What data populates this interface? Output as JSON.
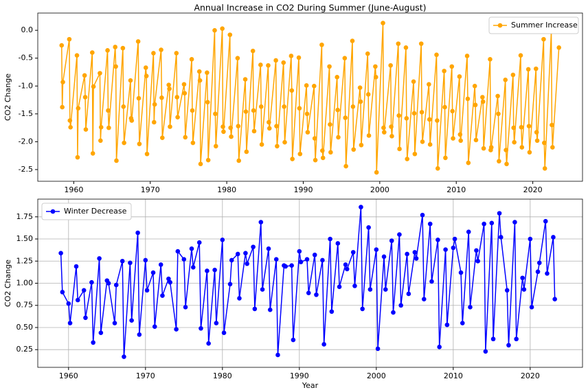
{
  "chart_data": [
    {
      "type": "line",
      "title": "Annual Increase in CO2 During Summer (June-August)",
      "ylabel": "CO2 Change",
      "xlim": [
        1955.3,
        2026.5
      ],
      "ylim": [
        -2.71,
        0.31
      ],
      "grid": false,
      "legend": "upper right",
      "xticks": [
        1960,
        1970,
        1980,
        1990,
        2000,
        2010,
        2020
      ],
      "yticks": [
        {
          "value": 0,
          "label": "0.0"
        },
        -0.5,
        {
          "value": -1,
          "label": "-1.0"
        },
        -1.5,
        {
          "value": -2,
          "label": "-2.0"
        },
        -2.5
      ],
      "x": [
        1958.42,
        1958.5,
        1958.58,
        1959.42,
        1959.5,
        1959.58,
        1960.42,
        1960.5,
        1960.58,
        1961.42,
        1961.5,
        1961.58,
        1962.42,
        1962.5,
        1962.58,
        1963.42,
        1963.5,
        1963.58,
        1964.42,
        1964.5,
        1964.58,
        1965.42,
        1965.5,
        1965.58,
        1966.42,
        1966.5,
        1966.58,
        1967.42,
        1967.5,
        1967.58,
        1968.42,
        1968.5,
        1968.58,
        1969.42,
        1969.5,
        1969.58,
        1970.42,
        1970.5,
        1970.58,
        1971.42,
        1971.5,
        1971.58,
        1972.42,
        1972.5,
        1972.58,
        1973.42,
        1973.5,
        1973.58,
        1974.42,
        1974.5,
        1974.58,
        1975.42,
        1975.5,
        1975.58,
        1976.42,
        1976.5,
        1976.58,
        1977.42,
        1977.5,
        1977.58,
        1978.42,
        1978.5,
        1978.58,
        1979.42,
        1979.5,
        1979.58,
        1980.42,
        1980.5,
        1980.58,
        1981.42,
        1981.5,
        1981.58,
        1982.42,
        1982.5,
        1982.58,
        1983.42,
        1983.5,
        1983.58,
        1984.42,
        1984.5,
        1984.58,
        1985.42,
        1985.5,
        1985.58,
        1986.42,
        1986.5,
        1986.58,
        1987.42,
        1987.5,
        1987.58,
        1988.42,
        1988.5,
        1988.58,
        1989.42,
        1989.5,
        1989.58,
        1990.42,
        1990.5,
        1990.58,
        1991.42,
        1991.5,
        1991.58,
        1992.42,
        1992.5,
        1992.58,
        1993.42,
        1993.5,
        1993.58,
        1994.42,
        1994.5,
        1994.58,
        1995.42,
        1995.5,
        1995.58,
        1996.42,
        1996.5,
        1996.58,
        1997.42,
        1997.5,
        1997.58,
        1998.42,
        1998.5,
        1998.58,
        1999.42,
        1999.5,
        1999.58,
        2000.42,
        2000.5,
        2000.58,
        2001.42,
        2001.5,
        2001.58,
        2002.42,
        2002.5,
        2002.58,
        2003.42,
        2003.5,
        2003.58,
        2004.42,
        2004.5,
        2004.58,
        2005.42,
        2005.5,
        2005.58,
        2006.42,
        2006.5,
        2006.58,
        2007.42,
        2007.5,
        2007.58,
        2008.42,
        2008.5,
        2008.58,
        2009.42,
        2009.5,
        2009.58,
        2010.42,
        2010.5,
        2010.58,
        2011.42,
        2011.5,
        2011.58,
        2012.42,
        2012.5,
        2012.58,
        2013.42,
        2013.5,
        2013.58,
        2014.42,
        2014.5,
        2014.58,
        2015.42,
        2015.5,
        2015.58,
        2016.42,
        2016.5,
        2016.58,
        2017.42,
        2017.5,
        2017.58,
        2018.42,
        2018.5,
        2018.58,
        2019.42,
        2019.5,
        2019.58,
        2020.42,
        2020.5,
        2020.58,
        2021.42,
        2021.5,
        2021.58,
        2022.42,
        2022.5,
        2022.58,
        2023.42
      ],
      "series": [
        {
          "name": "Summer Increase",
          "color": "orange",
          "values": [
            -0.27,
            -1.38,
            -0.93,
            -0.16,
            -1.62,
            -1.74,
            -0.45,
            -2.28,
            -1.4,
            -0.81,
            -1.2,
            -1.78,
            -0.4,
            -2.21,
            -1.01,
            -0.77,
            -1.98,
            -1.74,
            -0.36,
            -1.44,
            -1.75,
            -0.3,
            -0.65,
            -2.34,
            -0.32,
            -1.37,
            -2.02,
            -0.9,
            -1.58,
            -1.62,
            -0.2,
            -1.22,
            -2.04,
            -0.67,
            -0.82,
            -2.22,
            -0.41,
            -1.65,
            -1.33,
            -0.35,
            -1.21,
            -1.93,
            -0.98,
            -1.05,
            -1.73,
            -0.41,
            -1.2,
            -1.56,
            -0.97,
            -1.13,
            -1.92,
            -0.52,
            -1.44,
            -2.02,
            -0.74,
            -0.9,
            -2.4,
            -0.76,
            -1.29,
            -2.33,
            0.0,
            -1.5,
            -2.08,
            0.03,
            -1.73,
            -1.82,
            -0.08,
            -1.75,
            -1.91,
            -0.5,
            -1.72,
            -2.34,
            -0.88,
            -1.46,
            -2.18,
            -0.37,
            -1.44,
            -1.81,
            -0.62,
            -1.37,
            -2.05,
            -0.63,
            -1.65,
            -1.76,
            -0.54,
            -1.72,
            -2.08,
            -0.58,
            -1.37,
            -2.01,
            -0.46,
            -1.08,
            -2.31,
            -0.49,
            -1.4,
            -2.22,
            -0.99,
            -1.5,
            -1.83,
            -1.0,
            -1.94,
            -2.33,
            -0.26,
            -2.16,
            -2.29,
            -0.65,
            -1.69,
            -2.19,
            -0.84,
            -1.43,
            -1.92,
            -0.5,
            -1.57,
            -2.44,
            -0.19,
            -1.37,
            -2.14,
            -1.03,
            -1.28,
            -2.06,
            -0.42,
            -1.15,
            -1.89,
            -0.65,
            -0.84,
            -2.55,
            0.13,
            -1.75,
            -1.83,
            -0.63,
            -1.73,
            -1.9,
            -0.24,
            -1.53,
            -2.13,
            -0.31,
            -1.58,
            -2.31,
            -0.92,
            -1.49,
            -2.22,
            -0.24,
            -1.47,
            -2.0,
            -0.97,
            -1.6,
            -2.05,
            -0.44,
            -1.62,
            -2.48,
            -0.73,
            -1.38,
            -2.29,
            -0.65,
            -1.45,
            -1.94,
            -0.83,
            -1.87,
            -1.98,
            -0.46,
            -1.23,
            -2.38,
            -1.0,
            -1.34,
            -1.97,
            -1.2,
            -1.28,
            -2.12,
            -0.52,
            -2.15,
            -2.1,
            -1.18,
            -1.5,
            -2.35,
            -0.89,
            -2.15,
            -2.4,
            -0.8,
            -1.75,
            -2.01,
            -0.45,
            -1.74,
            -2.1,
            -0.7,
            -1.72,
            -2.19,
            -0.69,
            -1.83,
            -1.98,
            -0.16,
            -2.02,
            -2.48,
            -0.03,
            -1.7,
            -2.1,
            -0.31
          ]
        }
      ]
    },
    {
      "type": "line",
      "xlabel": "Year",
      "ylabel": "CO2 Change",
      "xlim": [
        1956,
        2026.8
      ],
      "ylim": [
        0.05,
        1.95
      ],
      "grid": true,
      "legend": "upper left",
      "xticks": [
        1960,
        1970,
        1980,
        1990,
        2000,
        2010,
        2020
      ],
      "yticks": [
        0.25,
        {
          "value": 0.5,
          "label": "0.50"
        },
        0.75,
        {
          "value": 1,
          "label": "1.00"
        },
        1.25,
        {
          "value": 1.5,
          "label": "1.50"
        },
        1.75
      ],
      "x": [
        1959,
        1959.2,
        1960,
        1960.2,
        1961,
        1961.2,
        1962,
        1962.2,
        1963,
        1963.2,
        1964,
        1964.2,
        1965,
        1965.2,
        1966,
        1966.2,
        1967,
        1967.2,
        1968,
        1968.2,
        1969,
        1969.2,
        1970,
        1970.2,
        1971,
        1971.2,
        1972,
        1972.2,
        1973,
        1973.2,
        1974,
        1974.2,
        1975,
        1975.2,
        1976,
        1976.2,
        1977,
        1977.2,
        1978,
        1978.2,
        1979,
        1979.2,
        1980,
        1980.2,
        1981,
        1981.2,
        1982,
        1982.2,
        1983,
        1983.2,
        1984,
        1984.2,
        1985,
        1985.2,
        1986,
        1986.2,
        1987,
        1987.2,
        1988,
        1988.2,
        1989,
        1989.2,
        1990,
        1990.2,
        1991,
        1991.2,
        1992,
        1992.2,
        1993,
        1993.2,
        1994,
        1994.2,
        1995,
        1995.2,
        1996,
        1996.2,
        1997,
        1997.2,
        1998,
        1998.2,
        1999,
        1999.2,
        2000,
        2000.2,
        2001,
        2001.2,
        2002,
        2002.2,
        2003,
        2003.2,
        2004,
        2004.2,
        2005,
        2005.2,
        2006,
        2006.2,
        2007,
        2007.2,
        2008,
        2008.2,
        2009,
        2009.2,
        2010,
        2010.2,
        2011,
        2011.2,
        2012,
        2012.2,
        2013,
        2013.2,
        2014,
        2014.2,
        2015,
        2015.2,
        2016,
        2016.2,
        2017,
        2017.2,
        2018,
        2018.2,
        2019,
        2019.2,
        2020,
        2020.2,
        2021,
        2021.2,
        2022,
        2022.2,
        2023,
        2023.2
      ],
      "series": [
        {
          "name": "Winter Decrease",
          "color": "blue",
          "values": [
            1.34,
            0.9,
            0.77,
            0.55,
            1.19,
            0.81,
            0.92,
            0.61,
            1.01,
            0.33,
            1.28,
            0.44,
            1.03,
            1.0,
            0.55,
            0.98,
            1.25,
            0.17,
            1.23,
            0.58,
            1.57,
            0.42,
            1.26,
            0.92,
            1.12,
            0.51,
            1.21,
            0.86,
            1.05,
            1.01,
            0.48,
            1.36,
            1.27,
            0.73,
            1.39,
            1.18,
            1.46,
            0.49,
            1.14,
            0.32,
            1.15,
            0.55,
            1.49,
            0.44,
            0.99,
            1.26,
            1.33,
            0.83,
            1.34,
            1.22,
            1.41,
            0.71,
            1.69,
            0.93,
            1.39,
            0.7,
            1.27,
            0.19,
            1.2,
            1.19,
            1.2,
            0.36,
            1.36,
            1.24,
            1.27,
            0.89,
            1.32,
            0.87,
            1.26,
            0.31,
            1.5,
            0.68,
            1.45,
            0.96,
            1.21,
            1.16,
            1.35,
            0.97,
            1.86,
            0.71,
            1.63,
            0.93,
            1.38,
            0.26,
            1.3,
            0.93,
            1.48,
            0.67,
            1.55,
            0.75,
            1.33,
            0.88,
            1.35,
            1.28,
            1.77,
            0.82,
            1.67,
            1.02,
            1.49,
            0.28,
            1.38,
            0.53,
            1.4,
            1.5,
            1.12,
            0.55,
            1.58,
            0.73,
            1.37,
            1.25,
            1.67,
            0.23,
            1.68,
            0.37,
            1.79,
            1.52,
            0.92,
            0.3,
            1.69,
            0.37,
            1.06,
            0.93,
            1.5,
            0.73,
            1.13,
            1.23,
            1.7,
            1.11,
            1.52,
            0.82
          ]
        }
      ]
    }
  ]
}
